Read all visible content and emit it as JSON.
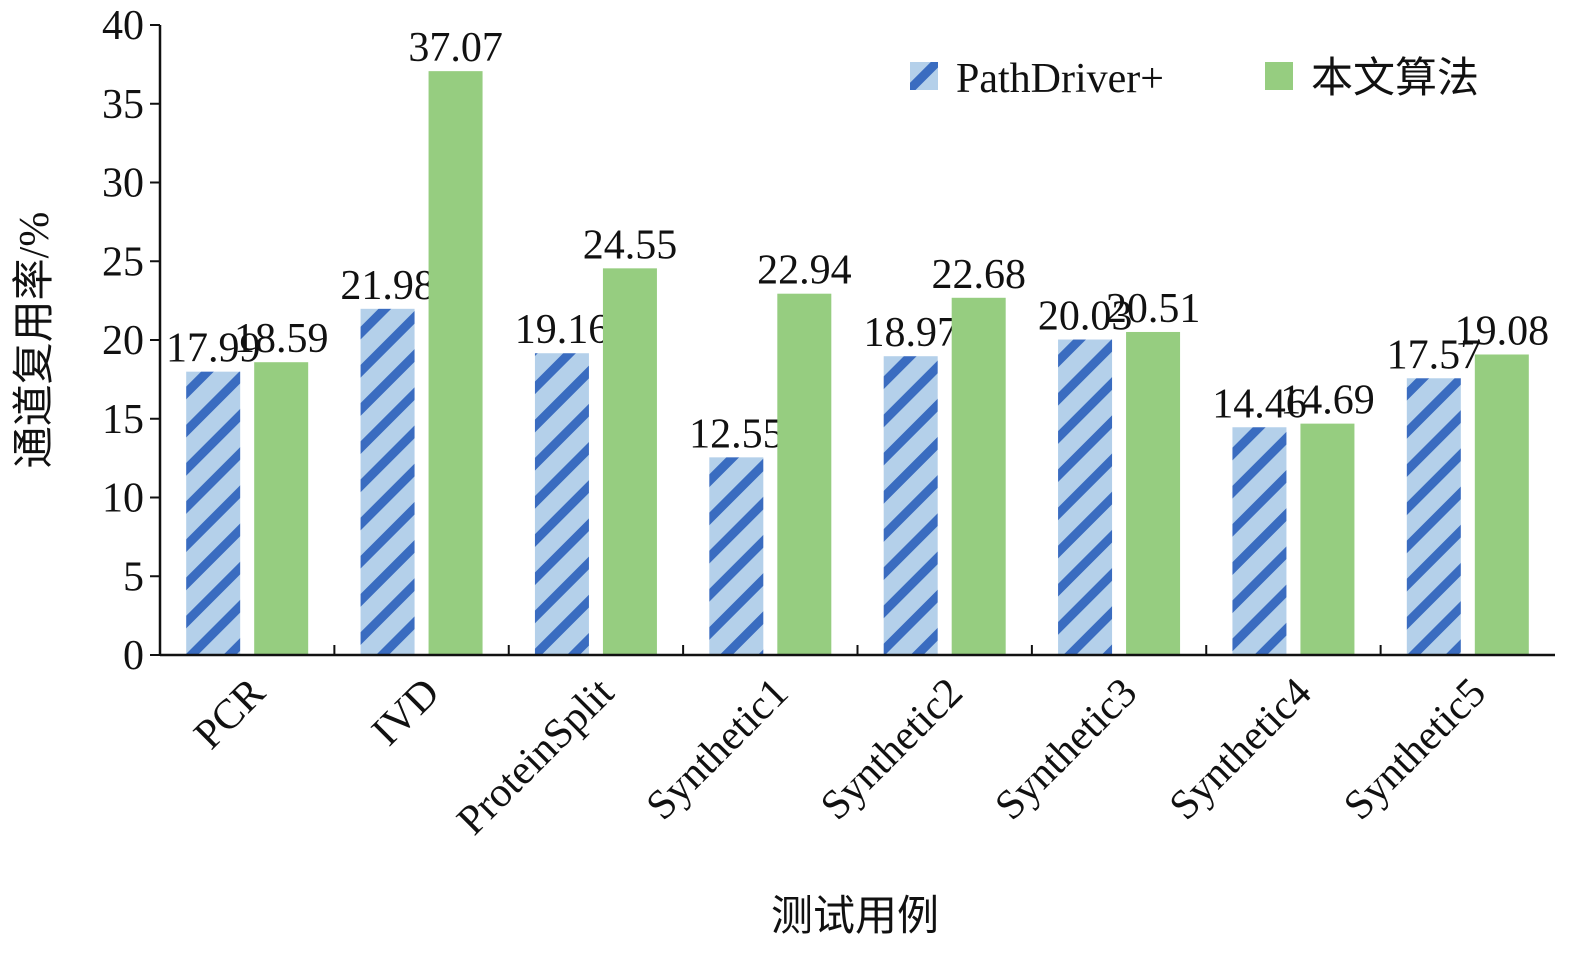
{
  "chart_data": {
    "type": "bar",
    "x_label": "测试用例",
    "y_label": "通道复用率/%",
    "categories": [
      "PCR",
      "IVD",
      "ProteinSplit",
      "Synthetic1",
      "Synthetic2",
      "Synthetic3",
      "Synthetic4",
      "Synthetic5"
    ],
    "series": [
      {
        "name": "PathDriver+",
        "color": "#3a6cc0",
        "values": [
          17.99,
          21.98,
          19.16,
          12.55,
          18.97,
          20.03,
          14.46,
          17.57
        ]
      },
      {
        "name": "本文算法",
        "color": "#96cd80",
        "values": [
          18.59,
          37.07,
          24.55,
          22.94,
          22.68,
          20.51,
          14.69,
          19.08
        ]
      }
    ],
    "ylim": [
      0,
      40
    ],
    "yticks": [
      0,
      5,
      10,
      15,
      20,
      25,
      30,
      35,
      40
    ],
    "legend": "upper right"
  }
}
